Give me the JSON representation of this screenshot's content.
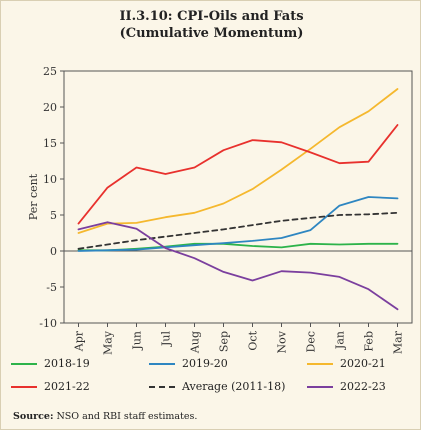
{
  "title_line1": "II.3.10: CPI-Oils and Fats",
  "title_line2": "(Cumulative Momentum)",
  "source_label": "Source:",
  "source_text": "NSO and RBI staff estimates.",
  "chart_data": {
    "type": "line",
    "title": "II.3.10: CPI-Oils and Fats (Cumulative Momentum)",
    "xlabel": "",
    "ylabel": "Per cent",
    "categories": [
      "Apr",
      "May",
      "Jun",
      "Jul",
      "Aug",
      "Sep",
      "Oct",
      "Nov",
      "Dec",
      "Jan",
      "Feb",
      "Mar"
    ],
    "ylim": [
      -10,
      25
    ],
    "yticks": [
      -10,
      -5,
      0,
      5,
      10,
      15,
      20,
      25
    ],
    "grid": false,
    "legend_position": "bottom",
    "series": [
      {
        "name": "2018-19",
        "color": "#2db34a",
        "dash": "solid",
        "values": [
          0.1,
          0.1,
          0.3,
          0.6,
          1.0,
          1.0,
          0.7,
          0.5,
          1.0,
          0.9,
          1.0,
          1.0
        ]
      },
      {
        "name": "2019-20",
        "color": "#2e86c1",
        "dash": "solid",
        "values": [
          0.0,
          0.1,
          0.2,
          0.5,
          0.8,
          1.1,
          1.4,
          1.8,
          2.9,
          6.3,
          7.5,
          7.3
        ]
      },
      {
        "name": "2020-21",
        "color": "#f5b82e",
        "dash": "solid",
        "values": [
          2.5,
          3.8,
          3.9,
          4.7,
          5.3,
          6.6,
          8.6,
          11.3,
          14.2,
          17.2,
          19.4,
          22.5
        ]
      },
      {
        "name": "2021-22",
        "color": "#e8312d",
        "dash": "solid",
        "values": [
          3.8,
          8.8,
          11.6,
          10.7,
          11.6,
          14.0,
          15.4,
          15.1,
          13.7,
          12.2,
          12.4,
          17.5
        ]
      },
      {
        "name": "Average (2011-18)",
        "color": "#333333",
        "dash": "dashed",
        "values": [
          0.3,
          0.9,
          1.5,
          2.0,
          2.5,
          3.0,
          3.6,
          4.2,
          4.6,
          5.0,
          5.1,
          5.3
        ]
      },
      {
        "name": "2022-23",
        "color": "#7b3f9e",
        "dash": "solid",
        "values": [
          3.0,
          4.0,
          3.1,
          0.4,
          -1.0,
          -2.9,
          -4.1,
          -2.8,
          -3.0,
          -3.6,
          -5.3,
          -8.1
        ]
      }
    ]
  }
}
